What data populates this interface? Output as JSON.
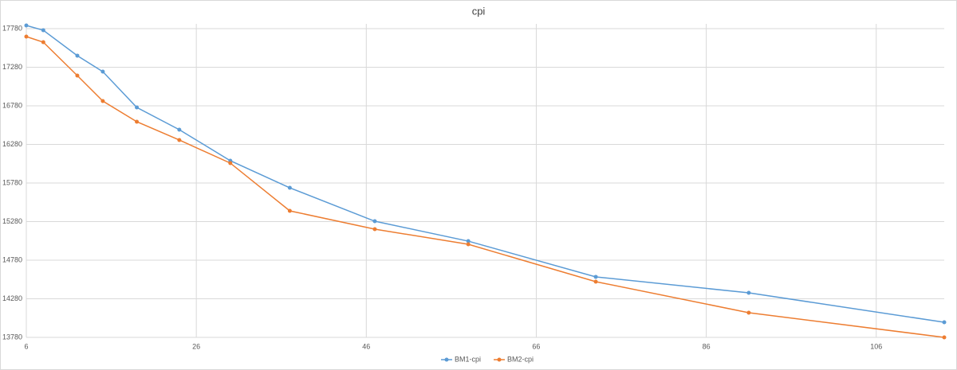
{
  "chart_data": {
    "type": "line",
    "title": "cpi",
    "x": [
      6,
      8,
      12,
      15,
      19,
      24,
      30,
      37,
      47,
      58,
      73,
      91,
      114
    ],
    "series": [
      {
        "name": "BM1-cpi",
        "color": "#5b9bd5",
        "values": [
          17821,
          17759,
          17430,
          17223,
          16759,
          16471,
          16069,
          15718,
          15285,
          15027,
          14564,
          14357,
          13976
        ]
      },
      {
        "name": "BM2-cpi",
        "color": "#ed7d31",
        "values": [
          17677,
          17605,
          17172,
          16842,
          16574,
          16337,
          16038,
          15419,
          15182,
          14986,
          14502,
          14100,
          13780
        ]
      }
    ],
    "xlim": [
      6,
      114
    ],
    "xticks": [
      6,
      26,
      46,
      66,
      86,
      106
    ],
    "ylim": [
      13780,
      17780
    ],
    "yticks": [
      13780,
      14280,
      14780,
      15280,
      15780,
      16280,
      16780,
      17280,
      17780
    ],
    "grid": true,
    "legend": "bottom"
  }
}
